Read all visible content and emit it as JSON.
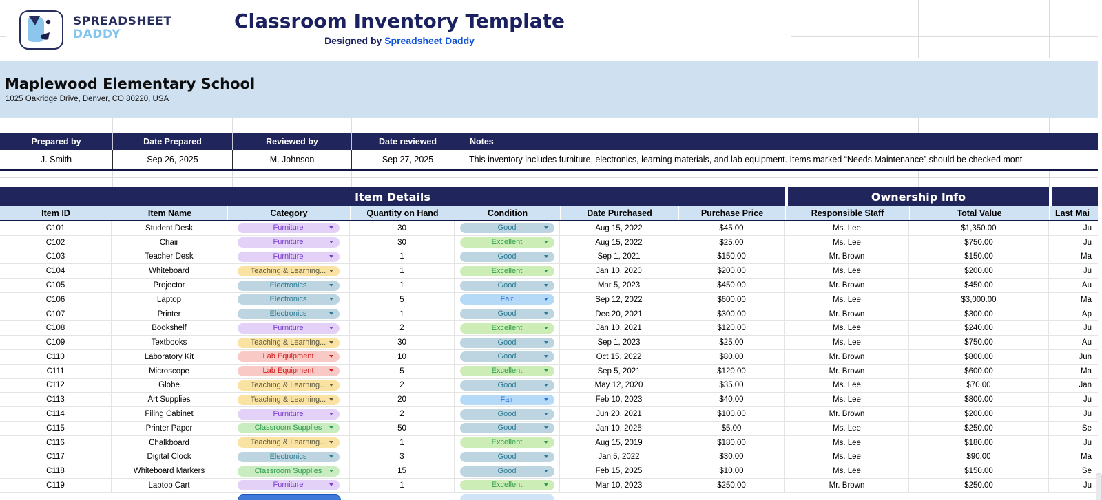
{
  "header": {
    "logo_line1": "SPREADSHEET",
    "logo_line2": "DADDY",
    "title": "Classroom Inventory Template",
    "designed_by_prefix": "Designed by ",
    "designed_by_link": "Spreadsheet Daddy"
  },
  "school": {
    "name": "Maplewood Elementary School",
    "address": "1025 Oakridge Drive, Denver, CO 80220, USA"
  },
  "meta_table": {
    "headers": [
      "Prepared by",
      "Date Prepared",
      "Reviewed by",
      "Date reviewed",
      "Notes"
    ],
    "row": {
      "prepared_by": "J. Smith",
      "date_prepared": "Sep 26, 2025",
      "reviewed_by": "M. Johnson",
      "date_reviewed": "Sep 27, 2025",
      "notes": "This inventory includes furniture, electronics, learning materials, and lab equipment. Items marked “Needs Maintenance” should be checked mont"
    }
  },
  "inventory": {
    "group_headers": [
      "Item Details",
      "Ownership Info"
    ],
    "columns": [
      "Item ID",
      "Item Name",
      "Category",
      "Quantity on Hand",
      "Condition",
      "Date Purchased",
      "Purchase Price",
      "Responsible Staff",
      "Total Value",
      "Last Mai"
    ],
    "rows": [
      {
        "id": "C101",
        "name": "Student Desk",
        "category": "Furniture",
        "qty": "30",
        "condition": "Good",
        "date": "Aug 15, 2022",
        "price": "$45.00",
        "staff": "Ms. Lee",
        "total": "$1,350.00",
        "last": "Ju"
      },
      {
        "id": "C102",
        "name": "Chair",
        "category": "Furniture",
        "qty": "30",
        "condition": "Excellent",
        "date": "Aug 15, 2022",
        "price": "$25.00",
        "staff": "Ms. Lee",
        "total": "$750.00",
        "last": "Ju"
      },
      {
        "id": "C103",
        "name": "Teacher Desk",
        "category": "Furniture",
        "qty": "1",
        "condition": "Good",
        "date": "Sep 1, 2021",
        "price": "$150.00",
        "staff": "Mr. Brown",
        "total": "$150.00",
        "last": "Ma"
      },
      {
        "id": "C104",
        "name": "Whiteboard",
        "category": "Teaching & Learning...",
        "qty": "1",
        "condition": "Excellent",
        "date": "Jan 10, 2020",
        "price": "$200.00",
        "staff": "Ms. Lee",
        "total": "$200.00",
        "last": "Ju"
      },
      {
        "id": "C105",
        "name": "Projector",
        "category": "Electronics",
        "qty": "1",
        "condition": "Good",
        "date": "Mar 5, 2023",
        "price": "$450.00",
        "staff": "Mr. Brown",
        "total": "$450.00",
        "last": "Au"
      },
      {
        "id": "C106",
        "name": "Laptop",
        "category": "Electronics",
        "qty": "5",
        "condition": "Fair",
        "date": "Sep 12, 2022",
        "price": "$600.00",
        "staff": "Ms. Lee",
        "total": "$3,000.00",
        "last": "Ma"
      },
      {
        "id": "C107",
        "name": "Printer",
        "category": "Electronics",
        "qty": "1",
        "condition": "Good",
        "date": "Dec 20, 2021",
        "price": "$300.00",
        "staff": "Mr. Brown",
        "total": "$300.00",
        "last": "Ap"
      },
      {
        "id": "C108",
        "name": "Bookshelf",
        "category": "Furniture",
        "qty": "2",
        "condition": "Excellent",
        "date": "Jan 10, 2021",
        "price": "$120.00",
        "staff": "Ms. Lee",
        "total": "$240.00",
        "last": "Ju"
      },
      {
        "id": "C109",
        "name": "Textbooks",
        "category": "Teaching & Learning...",
        "qty": "30",
        "condition": "Good",
        "date": "Sep 1, 2023",
        "price": "$25.00",
        "staff": "Ms. Lee",
        "total": "$750.00",
        "last": "Au"
      },
      {
        "id": "C110",
        "name": "Laboratory Kit",
        "category": "Lab Equipment",
        "qty": "10",
        "condition": "Good",
        "date": "Oct 15, 2022",
        "price": "$80.00",
        "staff": "Mr. Brown",
        "total": "$800.00",
        "last": "Jun"
      },
      {
        "id": "C111",
        "name": "Microscope",
        "category": "Lab Equipment",
        "qty": "5",
        "condition": "Excellent",
        "date": "Sep 5, 2021",
        "price": "$120.00",
        "staff": "Mr. Brown",
        "total": "$600.00",
        "last": "Ma"
      },
      {
        "id": "C112",
        "name": "Globe",
        "category": "Teaching & Learning...",
        "qty": "2",
        "condition": "Good",
        "date": "May 12, 2020",
        "price": "$35.00",
        "staff": "Ms. Lee",
        "total": "$70.00",
        "last": "Jan"
      },
      {
        "id": "C113",
        "name": "Art Supplies",
        "category": "Teaching & Learning...",
        "qty": "20",
        "condition": "Fair",
        "date": "Feb 10, 2023",
        "price": "$40.00",
        "staff": "Ms. Lee",
        "total": "$800.00",
        "last": "Ju"
      },
      {
        "id": "C114",
        "name": "Filing Cabinet",
        "category": "Furniture",
        "qty": "2",
        "condition": "Good",
        "date": "Jun 20, 2021",
        "price": "$100.00",
        "staff": "Mr. Brown",
        "total": "$200.00",
        "last": "Ju"
      },
      {
        "id": "C115",
        "name": "Printer Paper",
        "category": "Classroom Supplies",
        "qty": "50",
        "condition": "Good",
        "date": "Jan 10, 2025",
        "price": "$5.00",
        "staff": "Ms. Lee",
        "total": "$250.00",
        "last": "Se"
      },
      {
        "id": "C116",
        "name": "Chalkboard",
        "category": "Teaching & Learning...",
        "qty": "1",
        "condition": "Excellent",
        "date": "Aug 15, 2019",
        "price": "$180.00",
        "staff": "Ms. Lee",
        "total": "$180.00",
        "last": "Ju"
      },
      {
        "id": "C117",
        "name": "Digital Clock",
        "category": "Electronics",
        "qty": "3",
        "condition": "Good",
        "date": "Jan 5, 2022",
        "price": "$30.00",
        "staff": "Ms. Lee",
        "total": "$90.00",
        "last": "Ma"
      },
      {
        "id": "C118",
        "name": "Whiteboard Markers",
        "category": "Classroom Supplies",
        "qty": "15",
        "condition": "Good",
        "date": "Feb 15, 2025",
        "price": "$10.00",
        "staff": "Ms. Lee",
        "total": "$150.00",
        "last": "Se"
      },
      {
        "id": "C119",
        "name": "Laptop Cart",
        "category": "Furniture",
        "qty": "1",
        "condition": "Excellent",
        "date": "Mar 10, 2023",
        "price": "$250.00",
        "staff": "Mr. Brown",
        "total": "$250.00",
        "last": "Ju"
      }
    ]
  },
  "colors": {
    "navy": "#20265c",
    "banner_blue": "#cfe0f1",
    "header_blue": "#cfe2f3",
    "link_blue": "#1356d8",
    "chips": {
      "Furniture": {
        "bg": "#e3d1f7",
        "fg": "#7b3fd0"
      },
      "Teaching & Learning...": {
        "bg": "#fae3a2",
        "fg": "#5d5840"
      },
      "Electronics": {
        "bg": "#bdd5e0",
        "fg": "#2d7b94"
      },
      "Lab Equipment": {
        "bg": "#f9c9c5",
        "fg": "#d11f1f"
      },
      "Classroom Supplies": {
        "bg": "#caecc1",
        "fg": "#2f9e4d"
      },
      "Good": {
        "bg": "#bdd5e0",
        "fg": "#2d7b94"
      },
      "Excellent": {
        "bg": "#cdedb6",
        "fg": "#2f9e4d"
      },
      "Fair": {
        "bg": "#b5daf8",
        "fg": "#2b6fd6"
      }
    },
    "partial_row": {
      "category_chip": "#3f78d9",
      "category_chip_border": "#1c55bb",
      "condition_chip": "#cfe4f7"
    }
  }
}
